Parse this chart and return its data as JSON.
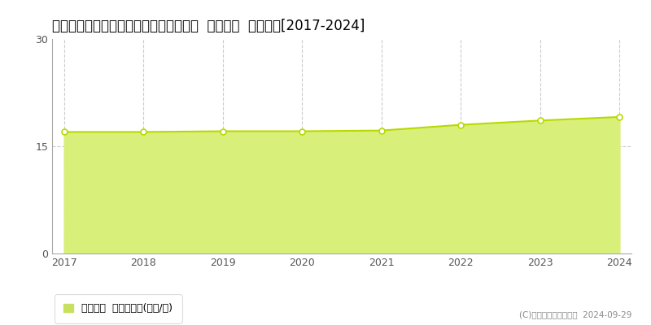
{
  "title": "佐賀県鳥栖市弥生が丘６丁目１０４番外  基準地価  地価推移[2017-2024]",
  "years": [
    2017,
    2018,
    2019,
    2020,
    2021,
    2022,
    2023,
    2024
  ],
  "values": [
    17.0,
    17.0,
    17.1,
    17.1,
    17.2,
    18.0,
    18.6,
    19.1
  ],
  "line_color": "#b8d900",
  "fill_color": "#d8f07a",
  "marker_color": "#ffffff",
  "marker_edge_color": "#b8d900",
  "ylim": [
    0,
    30
  ],
  "yticks": [
    0,
    15,
    30
  ],
  "background_color": "#ffffff",
  "grid_color": "#cccccc",
  "title_fontsize": 12,
  "legend_label": "基準地価  平均坪単価(万円/坪)",
  "copyright_text": "(C)土地価格ドットコム  2024-09-29",
  "legend_marker_color": "#c8e060"
}
